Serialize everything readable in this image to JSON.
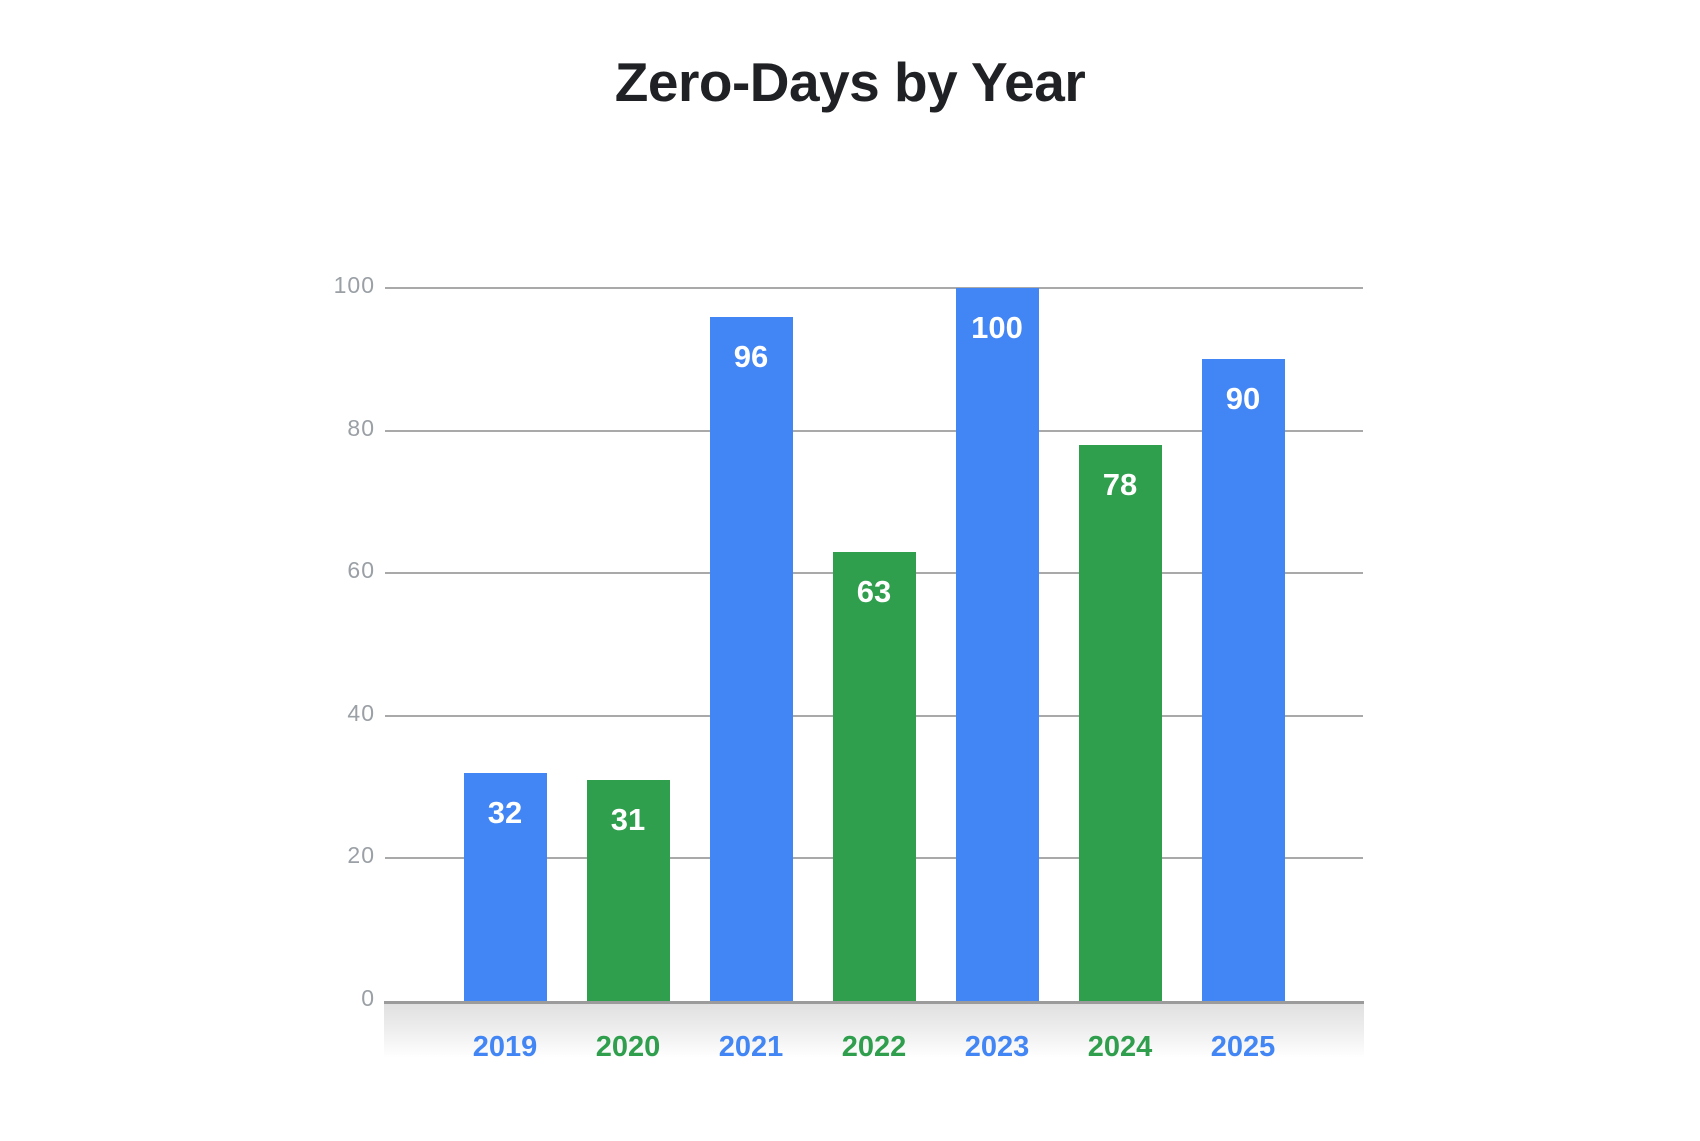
{
  "chart_data": {
    "type": "bar",
    "title": "Zero-Days by Year",
    "categories": [
      "2019",
      "2020",
      "2021",
      "2022",
      "2023",
      "2024",
      "2025"
    ],
    "values": [
      32,
      31,
      96,
      63,
      100,
      78,
      90
    ],
    "bar_color_keys": [
      "blue",
      "green",
      "blue",
      "green",
      "blue",
      "green",
      "blue"
    ],
    "colors": {
      "blue": "#4285f4",
      "green": "#2f9e4d"
    },
    "value_label_color": "#ffffff",
    "value_label_position": "inside-top",
    "y_ticks": [
      0,
      20,
      40,
      60,
      80,
      100
    ],
    "ylim": [
      0,
      100
    ],
    "xlabel": "",
    "ylabel": "",
    "grid": true,
    "legend": "none",
    "x_tick_label_colors": "match-bar-color",
    "y_tick_label_color": "#9aa0a6",
    "gridline_color": "#a9a9a9",
    "axis_line_color": "#9b9b9b"
  }
}
